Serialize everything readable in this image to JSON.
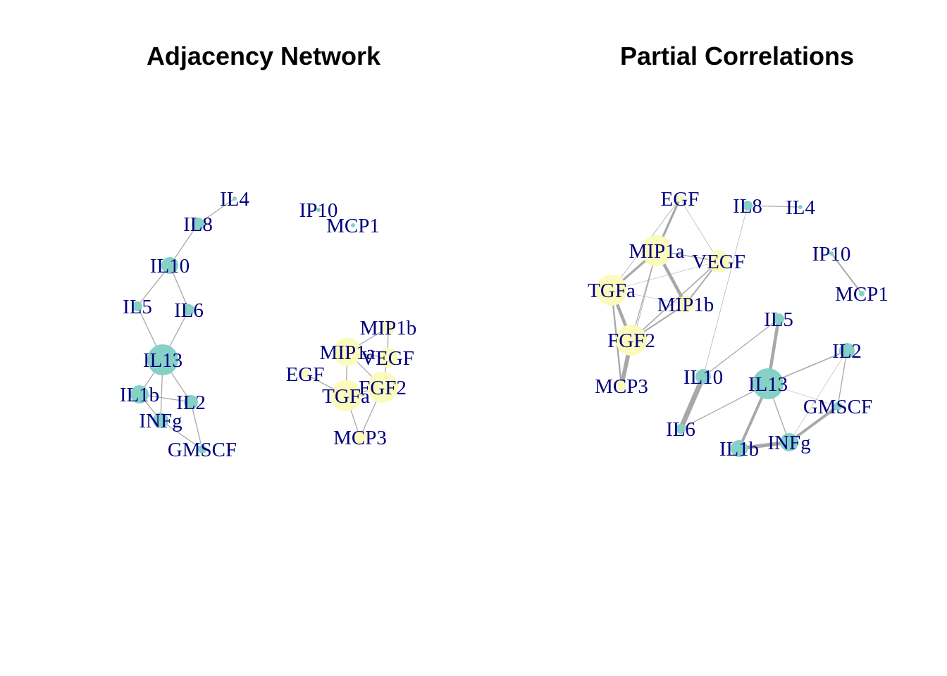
{
  "colors": {
    "group_a": "#86d1c5",
    "group_b": "#fbfbbb",
    "edge": "#a8a8a8",
    "label": "#00007f",
    "title": "#000000"
  },
  "panels": [
    {
      "title": "Adjacency Network",
      "nodes": [
        {
          "id": "IL4",
          "label": "IL4",
          "group": "a",
          "size": 3
        },
        {
          "id": "IL8",
          "label": "IL8",
          "group": "a",
          "size": 9
        },
        {
          "id": "IL10",
          "label": "IL10",
          "group": "a",
          "size": 12
        },
        {
          "id": "IL5",
          "label": "IL5",
          "group": "a",
          "size": 7
        },
        {
          "id": "IL6",
          "label": "IL6",
          "group": "a",
          "size": 8
        },
        {
          "id": "IL13",
          "label": "IL13",
          "group": "a",
          "size": 22
        },
        {
          "id": "IL1b",
          "label": "IL1b",
          "group": "a",
          "size": 13
        },
        {
          "id": "IL2",
          "label": "IL2",
          "group": "a",
          "size": 10
        },
        {
          "id": "INFg",
          "label": "INFg",
          "group": "a",
          "size": 11
        },
        {
          "id": "GMSCF",
          "label": "GMSCF",
          "group": "a",
          "size": 6
        },
        {
          "id": "IP10",
          "label": "IP10",
          "group": "a",
          "size": 3
        },
        {
          "id": "MCP1",
          "label": "MCP1",
          "group": "a",
          "size": 3
        },
        {
          "id": "MIP1b",
          "label": "MIP1b",
          "group": "b",
          "size": 10
        },
        {
          "id": "MIP1a",
          "label": "MIP1a",
          "group": "b",
          "size": 20
        },
        {
          "id": "VEGF",
          "label": "VEGF",
          "group": "b",
          "size": 14
        },
        {
          "id": "EGF",
          "label": "EGF",
          "group": "b",
          "size": 6
        },
        {
          "id": "TGFa",
          "label": "TGFa",
          "group": "b",
          "size": 22
        },
        {
          "id": "FGF2",
          "label": "FGF2",
          "group": "b",
          "size": 22
        },
        {
          "id": "MCP3",
          "label": "MCP3",
          "group": "b",
          "size": 10
        }
      ],
      "edges": [
        {
          "from": "IL4",
          "to": "IL8",
          "weight": 1
        },
        {
          "from": "IL8",
          "to": "IL10",
          "weight": 1
        },
        {
          "from": "IL10",
          "to": "IL5",
          "weight": 1
        },
        {
          "from": "IL10",
          "to": "IL6",
          "weight": 1
        },
        {
          "from": "IL5",
          "to": "IL13",
          "weight": 1
        },
        {
          "from": "IL6",
          "to": "IL13",
          "weight": 1
        },
        {
          "from": "IL13",
          "to": "IL1b",
          "weight": 1
        },
        {
          "from": "IL13",
          "to": "IL2",
          "weight": 1
        },
        {
          "from": "IL13",
          "to": "INFg",
          "weight": 1
        },
        {
          "from": "IL1b",
          "to": "INFg",
          "weight": 1
        },
        {
          "from": "IL1b",
          "to": "IL2",
          "weight": 1
        },
        {
          "from": "INFg",
          "to": "GMSCF",
          "weight": 1
        },
        {
          "from": "IL2",
          "to": "GMSCF",
          "weight": 1
        },
        {
          "from": "MIP1b",
          "to": "MIP1a",
          "weight": 1
        },
        {
          "from": "MIP1b",
          "to": "VEGF",
          "weight": 1
        },
        {
          "from": "MIP1a",
          "to": "VEGF",
          "weight": 1
        },
        {
          "from": "MIP1a",
          "to": "TGFa",
          "weight": 1
        },
        {
          "from": "MIP1a",
          "to": "FGF2",
          "weight": 1
        },
        {
          "from": "VEGF",
          "to": "FGF2",
          "weight": 1
        },
        {
          "from": "EGF",
          "to": "TGFa",
          "weight": 1
        },
        {
          "from": "TGFa",
          "to": "FGF2",
          "weight": 1
        },
        {
          "from": "TGFa",
          "to": "MCP3",
          "weight": 1
        },
        {
          "from": "FGF2",
          "to": "MCP3",
          "weight": 1
        }
      ]
    },
    {
      "title": "Partial Correlations",
      "nodes": [
        {
          "id": "EGF",
          "label": "EGF",
          "group": "b",
          "size": 5
        },
        {
          "id": "IL8",
          "label": "IL8",
          "group": "a",
          "size": 7
        },
        {
          "id": "IL4",
          "label": "IL4",
          "group": "a",
          "size": 3
        },
        {
          "id": "MIP1a",
          "label": "MIP1a",
          "group": "b",
          "size": 22
        },
        {
          "id": "VEGF",
          "label": "VEGF",
          "group": "b",
          "size": 16
        },
        {
          "id": "IP10",
          "label": "IP10",
          "group": "a",
          "size": 3
        },
        {
          "id": "TGFa",
          "label": "TGFa",
          "group": "b",
          "size": 22
        },
        {
          "id": "MIP1b",
          "label": "MIP1b",
          "group": "b",
          "size": 12
        },
        {
          "id": "MCP1",
          "label": "MCP1",
          "group": "a",
          "size": 4
        },
        {
          "id": "IL5",
          "label": "IL5",
          "group": "a",
          "size": 8
        },
        {
          "id": "FGF2",
          "label": "FGF2",
          "group": "b",
          "size": 22
        },
        {
          "id": "IL2",
          "label": "IL2",
          "group": "a",
          "size": 11
        },
        {
          "id": "IL10",
          "label": "IL10",
          "group": "a",
          "size": 11
        },
        {
          "id": "IL13",
          "label": "IL13",
          "group": "a",
          "size": 22
        },
        {
          "id": "MCP3",
          "label": "MCP3",
          "group": "b",
          "size": 7
        },
        {
          "id": "GMSCF",
          "label": "GMSCF",
          "group": "a",
          "size": 6
        },
        {
          "id": "IL6",
          "label": "IL6",
          "group": "a",
          "size": 7
        },
        {
          "id": "INFg",
          "label": "INFg",
          "group": "a",
          "size": 13
        },
        {
          "id": "IL1b",
          "label": "IL1b",
          "group": "a",
          "size": 12
        }
      ],
      "edges": [
        {
          "from": "EGF",
          "to": "MIP1a",
          "weight": 2.5
        },
        {
          "from": "EGF",
          "to": "TGFa",
          "weight": 0.6
        },
        {
          "from": "EGF",
          "to": "VEGF",
          "weight": 0.5
        },
        {
          "from": "IL8",
          "to": "IL4",
          "weight": 1
        },
        {
          "from": "IL8",
          "to": "IL10",
          "weight": 0.5
        },
        {
          "from": "IP10",
          "to": "MCP1",
          "weight": 1.5
        },
        {
          "from": "MIP1a",
          "to": "VEGF",
          "weight": 1.2
        },
        {
          "from": "MIP1a",
          "to": "TGFa",
          "weight": 2.5
        },
        {
          "from": "MIP1a",
          "to": "MIP1b",
          "weight": 3.5
        },
        {
          "from": "MIP1a",
          "to": "FGF2",
          "weight": 1
        },
        {
          "from": "MIP1a",
          "to": "MCP3",
          "weight": 0.6
        },
        {
          "from": "VEGF",
          "to": "MIP1b",
          "weight": 1.5
        },
        {
          "from": "VEGF",
          "to": "FGF2",
          "weight": 1.2
        },
        {
          "from": "VEGF",
          "to": "TGFa",
          "weight": 0.4
        },
        {
          "from": "TGFa",
          "to": "FGF2",
          "weight": 3.5
        },
        {
          "from": "TGFa",
          "to": "MCP3",
          "weight": 1.8
        },
        {
          "from": "TGFa",
          "to": "MIP1b",
          "weight": 0.4
        },
        {
          "from": "FGF2",
          "to": "MIP1b",
          "weight": 1.5
        },
        {
          "from": "FGF2",
          "to": "MCP3",
          "weight": 4.5
        },
        {
          "from": "IL5",
          "to": "IL13",
          "weight": 3.5
        },
        {
          "from": "IL5",
          "to": "IL10",
          "weight": 1
        },
        {
          "from": "IL13",
          "to": "IL2",
          "weight": 1.2
        },
        {
          "from": "IL13",
          "to": "IL6",
          "weight": 1
        },
        {
          "from": "IL13",
          "to": "IL1b",
          "weight": 3
        },
        {
          "from": "IL13",
          "to": "INFg",
          "weight": 1
        },
        {
          "from": "IL13",
          "to": "GMSCF",
          "weight": 0.3
        },
        {
          "from": "IL10",
          "to": "IL6",
          "weight": 5.5
        },
        {
          "from": "IL2",
          "to": "GMSCF",
          "weight": 1
        },
        {
          "from": "IL2",
          "to": "INFg",
          "weight": 0.4
        },
        {
          "from": "GMSCF",
          "to": "INFg",
          "weight": 3
        },
        {
          "from": "INFg",
          "to": "IL1b",
          "weight": 4
        }
      ]
    }
  ]
}
